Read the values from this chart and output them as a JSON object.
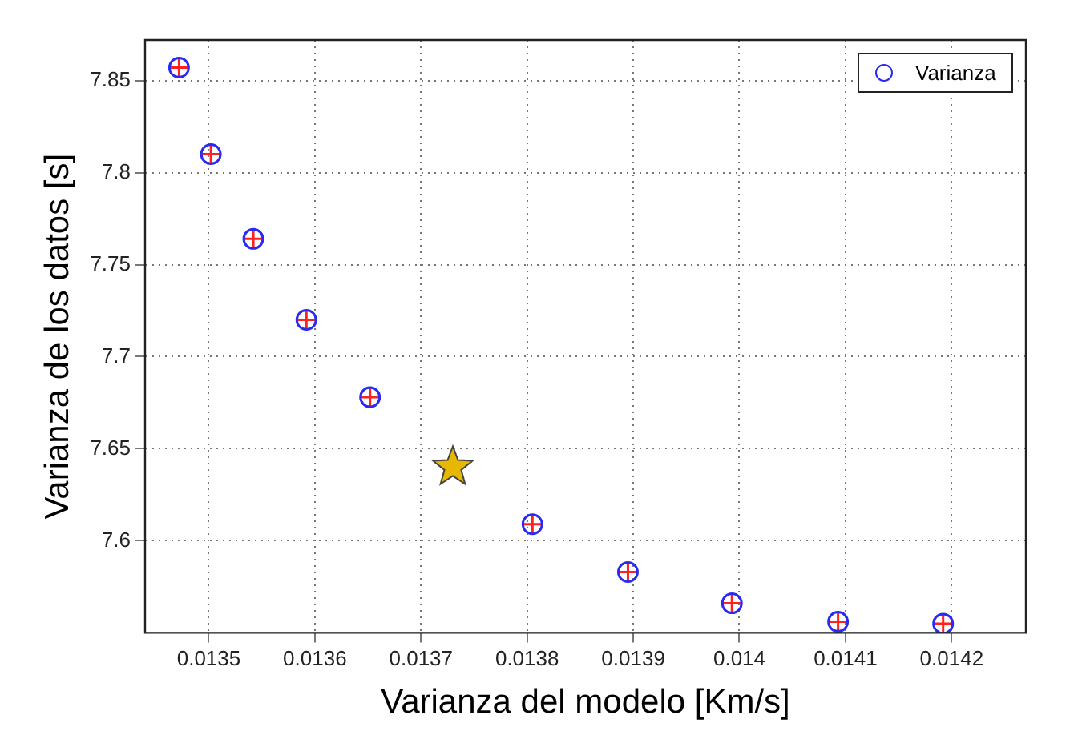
{
  "chart_data": {
    "type": "scatter",
    "xlabel": "Varianza del modelo [Km/s]",
    "ylabel": "Varianza de los datos [s]",
    "series": [
      {
        "name": "Varianza",
        "color": "#2a2af0",
        "marker": "circle",
        "x": [
          0.013472,
          0.013502,
          0.013542,
          0.013592,
          0.013652,
          0.013805,
          0.013895,
          0.013993,
          0.014093,
          0.014192
        ],
        "values": [
          7.857,
          7.81,
          7.764,
          7.72,
          7.678,
          7.609,
          7.583,
          7.566,
          7.556,
          7.555
        ]
      },
      {
        "color": "#ff2020",
        "marker": "cross",
        "x": [
          0.013472,
          0.013502,
          0.013542,
          0.013592,
          0.013652,
          0.013805,
          0.013895,
          0.013993,
          0.014093,
          0.014192
        ],
        "values": [
          7.857,
          7.81,
          7.764,
          7.72,
          7.678,
          7.609,
          7.583,
          7.566,
          7.556,
          7.555
        ]
      },
      {
        "color": "#e8b800",
        "marker": "star",
        "x": [
          0.01373
        ],
        "values": [
          7.64
        ]
      }
    ],
    "xlim": [
      0.01344,
      0.01427
    ],
    "xticks": [
      0.0135,
      0.0136,
      0.0137,
      0.0138,
      0.0139,
      0.014,
      0.0141,
      0.0142
    ],
    "ylim": [
      7.55,
      7.872
    ],
    "yticks": [
      7.6,
      7.65,
      7.7,
      7.75,
      7.8,
      7.85
    ],
    "grid": true,
    "legend": "top right"
  }
}
